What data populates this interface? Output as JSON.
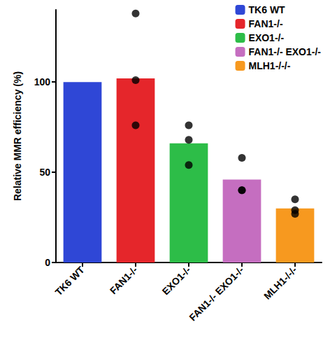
{
  "chart_data": {
    "type": "bar",
    "y_label": "Relative MMR efficiency (%)",
    "categories": [
      "TK6 WT",
      "FAN1-/-",
      "EXO1-/-",
      "FAN1-/- EXO1-/-",
      "MLH1-/-/-"
    ],
    "values": [
      100,
      102,
      66,
      46,
      30
    ],
    "colors": [
      "#2f47d6",
      "#e5262b",
      "#2dbd48",
      "#c56ec0",
      "#f7991f"
    ],
    "replicates": [
      [],
      [
        138,
        101,
        76
      ],
      [
        76,
        68,
        54
      ],
      [
        58,
        40,
        40
      ],
      [
        35,
        27,
        29
      ]
    ],
    "ylim": [
      0,
      140
    ],
    "yticks": [
      0,
      50,
      100
    ],
    "grid": false,
    "legend": "top-right"
  }
}
